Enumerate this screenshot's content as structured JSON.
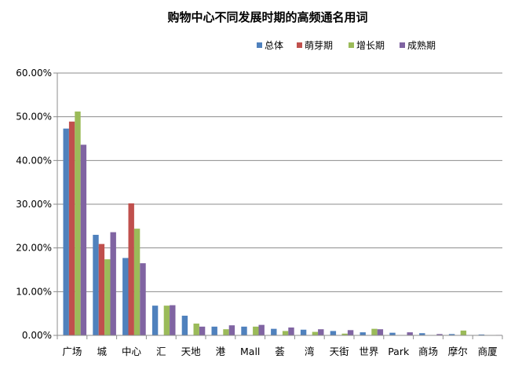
{
  "chart_data": {
    "type": "bar",
    "title": "购物中心不同发展时期的高频通名用词",
    "xlabel": "",
    "ylabel": "",
    "ylim": [
      0,
      60
    ],
    "yticks": [
      "0.00%",
      "10.00%",
      "20.00%",
      "30.00%",
      "40.00%",
      "50.00%",
      "60.00%"
    ],
    "grid": true,
    "legend_position": "top-right",
    "categories": [
      "广场",
      "城",
      "中心",
      "汇",
      "天地",
      "港",
      "Mall",
      "荟",
      "湾",
      "天街",
      "世界",
      "Park",
      "商场",
      "摩尔",
      "商厦"
    ],
    "series": [
      {
        "name": "总体",
        "color": "#4F81BD",
        "values": [
          47.3,
          23.0,
          17.7,
          6.8,
          4.5,
          2.0,
          2.0,
          1.5,
          1.3,
          1.0,
          0.7,
          0.6,
          0.5,
          0.3,
          0.2
        ]
      },
      {
        "name": "萌芽期",
        "color": "#C0504D",
        "values": [
          48.9,
          20.9,
          30.2,
          0.0,
          0.0,
          0.0,
          0.0,
          0.0,
          0.0,
          0.0,
          0.0,
          0.0,
          0.0,
          0.0,
          0.0
        ]
      },
      {
        "name": "增长期",
        "color": "#9BBB59",
        "values": [
          51.2,
          17.4,
          24.4,
          6.8,
          2.7,
          1.4,
          2.0,
          1.0,
          0.8,
          0.4,
          1.5,
          0.0,
          0.0,
          1.1,
          0.0
        ]
      },
      {
        "name": "成熟期",
        "color": "#8064A2",
        "values": [
          43.6,
          23.6,
          16.5,
          6.9,
          2.0,
          2.3,
          2.4,
          1.8,
          1.4,
          1.2,
          1.4,
          0.7,
          0.3,
          0.0,
          0.1
        ]
      }
    ]
  }
}
